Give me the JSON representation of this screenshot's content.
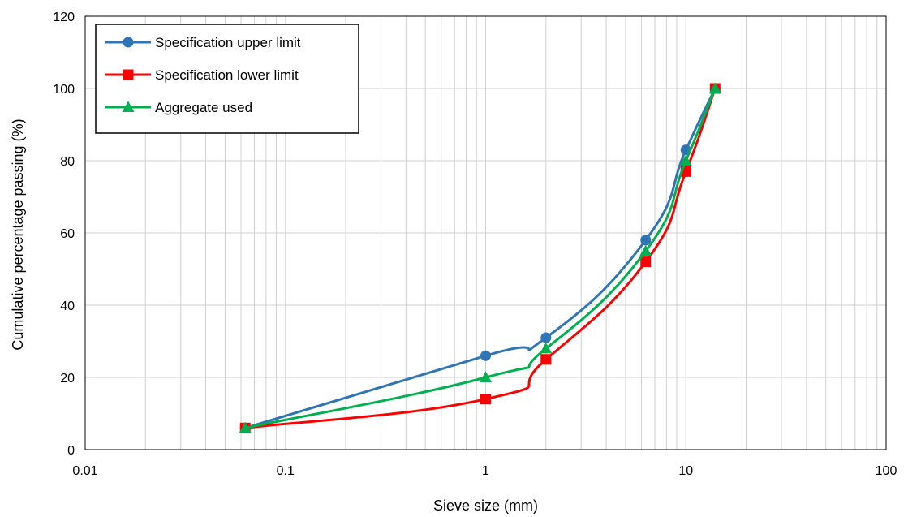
{
  "chart_data": {
    "type": "line",
    "xscale": "log",
    "xlim": [
      0.01,
      100
    ],
    "ylim": [
      0,
      120
    ],
    "xticks": [
      0.01,
      0.1,
      1,
      10,
      100
    ],
    "xtick_labels": [
      "0.01",
      "0.1",
      "1",
      "10",
      "100"
    ],
    "yticks": [
      0,
      20,
      40,
      60,
      80,
      100,
      120
    ],
    "ytick_labels": [
      "0",
      "20",
      "40",
      "60",
      "80",
      "100",
      "120"
    ],
    "xlabel": "Sieve size (mm)",
    "ylabel": "Cumulative percentage passing (%)",
    "grid": true,
    "legend_position": "top-left",
    "series": [
      {
        "name": "Specification upper limit",
        "color": "#2E75B6",
        "marker": "circle",
        "x": [
          0.063,
          1,
          2,
          6.3,
          10,
          14
        ],
        "y": [
          6,
          26,
          31,
          58,
          83,
          100
        ]
      },
      {
        "name": "Specification lower limit",
        "color": "#FF0000",
        "marker": "square",
        "x": [
          0.063,
          1,
          2,
          6.3,
          10,
          14
        ],
        "y": [
          6,
          14,
          25,
          52,
          77,
          100
        ]
      },
      {
        "name": "Aggregate used",
        "color": "#00B050",
        "marker": "triangle",
        "x": [
          0.063,
          1,
          2,
          6.3,
          10,
          14
        ],
        "y": [
          6,
          20,
          28,
          55,
          80,
          100
        ]
      }
    ]
  }
}
